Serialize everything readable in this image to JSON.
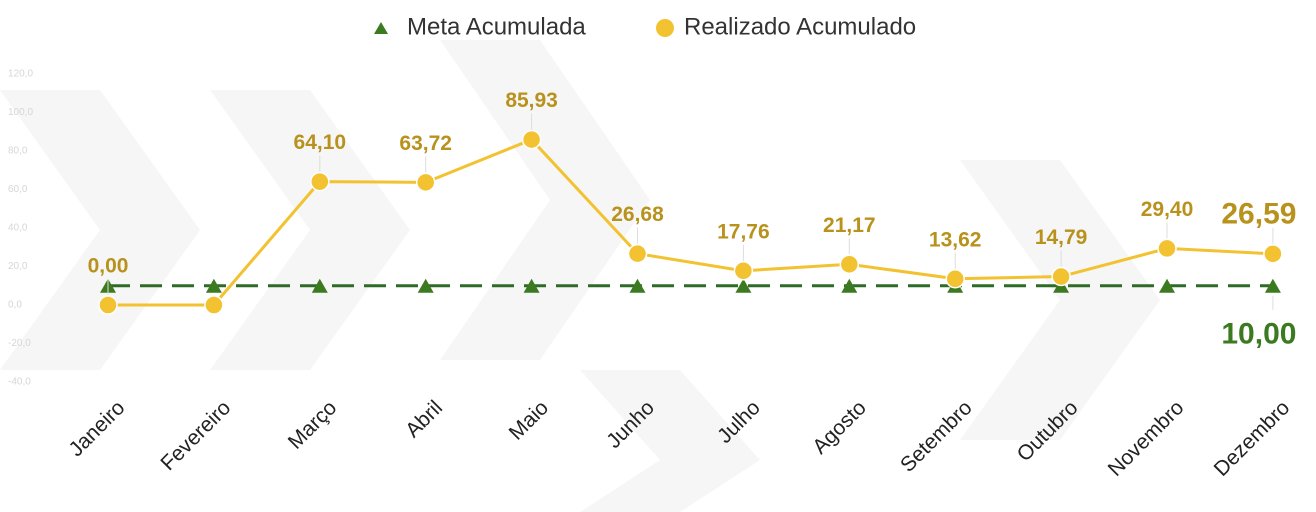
{
  "chart_data": {
    "type": "line",
    "categories": [
      "Janeiro",
      "Fevereiro",
      "Março",
      "Abril",
      "Maio",
      "Junho",
      "Julho",
      "Agosto",
      "Setembro",
      "Outubro",
      "Novembro",
      "Dezembro"
    ],
    "series": [
      {
        "name": "Meta Acumulada",
        "color": "#3b7a20",
        "values": [
          10,
          10,
          10,
          10,
          10,
          10,
          10,
          10,
          10,
          10,
          10,
          10
        ],
        "value_labels": [
          null,
          null,
          null,
          null,
          null,
          null,
          null,
          null,
          null,
          null,
          null,
          "10,00"
        ]
      },
      {
        "name": "Realizado Acumulado",
        "color": "#f2c230",
        "values": [
          0,
          0,
          64.1,
          63.72,
          85.93,
          26.68,
          17.76,
          21.17,
          13.62,
          14.79,
          29.4,
          26.59
        ],
        "value_labels": [
          "0,00",
          null,
          "64,10",
          "63,72",
          "85,93",
          "26,68",
          "17,76",
          "21,17",
          "13,62",
          "14,79",
          "29,40",
          "26,59"
        ]
      }
    ],
    "ylim": [
      -40,
      120
    ],
    "yticks": [
      {
        "value": 120,
        "label": "120,0"
      },
      {
        "value": 100,
        "label": "100,0"
      },
      {
        "value": 80,
        "label": "80,0"
      },
      {
        "value": 60,
        "label": "60,0"
      },
      {
        "value": 40,
        "label": "40,0"
      },
      {
        "value": 20,
        "label": "20,0"
      },
      {
        "value": 0,
        "label": "0,0"
      },
      {
        "value": -20,
        "label": "-20,0"
      },
      {
        "value": -40,
        "label": "-40,0"
      }
    ],
    "legend": "top"
  }
}
